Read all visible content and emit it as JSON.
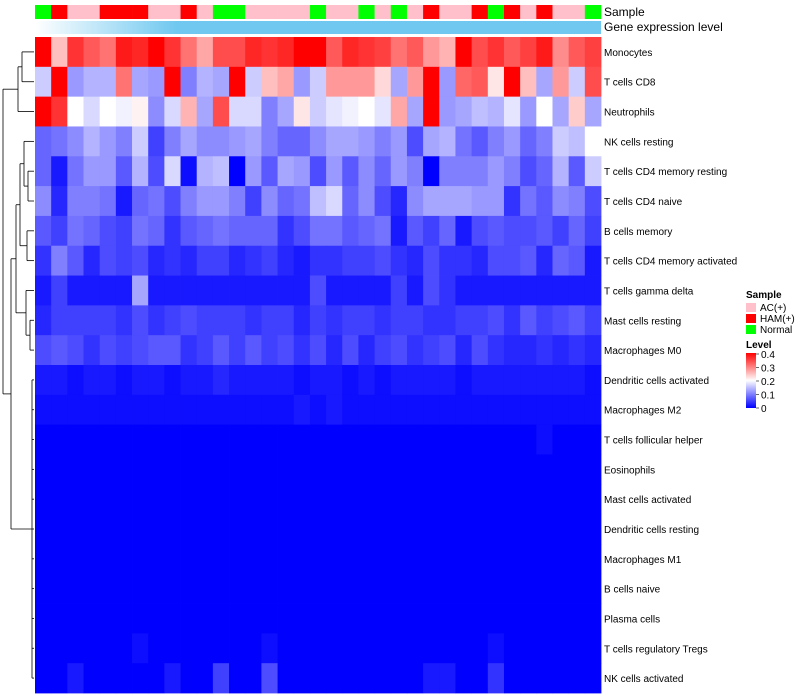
{
  "chart_data": {
    "type": "heatmap",
    "title": "",
    "annotations": {
      "sample_track_label": "Sample",
      "expression_track_label": "Gene expression level",
      "samples": [
        "Normal",
        "HAM(+)",
        "AC(+)",
        "AC(+)",
        "HAM(+)",
        "HAM(+)",
        "HAM(+)",
        "AC(+)",
        "AC(+)",
        "HAM(+)",
        "AC(+)",
        "Normal",
        "Normal",
        "AC(+)",
        "AC(+)",
        "AC(+)",
        "AC(+)",
        "Normal",
        "AC(+)",
        "AC(+)",
        "Normal",
        "AC(+)",
        "Normal",
        "AC(+)",
        "HAM(+)",
        "AC(+)",
        "AC(+)",
        "HAM(+)",
        "Normal",
        "HAM(+)",
        "AC(+)",
        "HAM(+)",
        "AC(+)",
        "AC(+)",
        "Normal"
      ]
    },
    "rows": [
      "Monocytes",
      "T cells CD8",
      "Neutrophils",
      "NK cells resting",
      "T cells CD4 memory resting",
      "T cells CD4 naive",
      "B cells memory",
      "T cells CD4 memory activated",
      "T cells gamma delta",
      "Mast cells resting",
      "Macrophages M0",
      "Dendritic cells activated",
      "Macrophages M2",
      "T cells follicular helper",
      "Eosinophils",
      "Mast cells activated",
      "Dendritic cells resting",
      "Macrophages M1",
      "B cells naive",
      "Plasma cells",
      "T cells regulatory  Tregs",
      "NK cells activated"
    ],
    "values": [
      [
        0.4,
        0.25,
        0.36,
        0.33,
        0.31,
        0.38,
        0.37,
        0.42,
        0.36,
        0.31,
        0.27,
        0.34,
        0.34,
        0.37,
        0.36,
        0.37,
        0.4,
        0.44,
        0.33,
        0.37,
        0.36,
        0.35,
        0.31,
        0.33,
        0.28,
        0.26,
        0.45,
        0.34,
        0.36,
        0.33,
        0.35,
        0.38,
        0.29,
        0.33,
        0.35
      ],
      [
        0.16,
        0.44,
        0.12,
        0.14,
        0.14,
        0.31,
        0.13,
        0.12,
        0.41,
        0.1,
        0.14,
        0.13,
        0.43,
        0.16,
        0.25,
        0.27,
        0.12,
        0.16,
        0.28,
        0.28,
        0.28,
        0.23,
        0.13,
        0.28,
        0.43,
        0.12,
        0.32,
        0.33,
        0.22,
        0.44,
        0.25,
        0.13,
        0.28,
        0.16,
        0.34
      ],
      [
        0.42,
        0.36,
        0.2,
        0.17,
        0.2,
        0.19,
        0.21,
        0.11,
        0.17,
        0.26,
        0.13,
        0.34,
        0.17,
        0.17,
        0.1,
        0.13,
        0.22,
        0.16,
        0.18,
        0.19,
        0.2,
        0.18,
        0.27,
        0.13,
        0.4,
        0.12,
        0.13,
        0.15,
        0.14,
        0.18,
        0.12,
        0.2,
        0.13,
        0.24,
        0.13
      ],
      [
        0.08,
        0.09,
        0.11,
        0.14,
        0.12,
        0.1,
        0.16,
        0.05,
        0.1,
        0.13,
        0.11,
        0.11,
        0.12,
        0.13,
        0.1,
        0.08,
        0.08,
        0.11,
        0.13,
        0.13,
        0.12,
        0.1,
        0.12,
        0.06,
        0.13,
        0.14,
        0.09,
        0.07,
        0.1,
        0.12,
        0.08,
        0.1,
        0.16,
        0.15,
        0.2
      ],
      [
        0.08,
        0.02,
        0.09,
        0.12,
        0.12,
        0.07,
        0.14,
        0.06,
        0.17,
        0.01,
        0.14,
        0.15,
        0.0,
        0.12,
        0.07,
        0.13,
        0.12,
        0.06,
        0.12,
        0.07,
        0.11,
        0.08,
        0.12,
        0.1,
        0.0,
        0.1,
        0.1,
        0.1,
        0.12,
        0.1,
        0.06,
        0.08,
        0.14,
        0.07,
        0.16
      ],
      [
        0.11,
        0.03,
        0.1,
        0.1,
        0.09,
        0.02,
        0.08,
        0.09,
        0.06,
        0.1,
        0.12,
        0.12,
        0.1,
        0.05,
        0.11,
        0.08,
        0.09,
        0.15,
        0.17,
        0.08,
        0.11,
        0.06,
        0.03,
        0.11,
        0.13,
        0.13,
        0.13,
        0.12,
        0.12,
        0.04,
        0.09,
        0.07,
        0.11,
        0.1,
        0.06
      ],
      [
        0.07,
        0.05,
        0.09,
        0.08,
        0.06,
        0.05,
        0.09,
        0.08,
        0.04,
        0.07,
        0.08,
        0.09,
        0.08,
        0.08,
        0.08,
        0.04,
        0.06,
        0.09,
        0.09,
        0.07,
        0.08,
        0.09,
        0.02,
        0.07,
        0.05,
        0.08,
        0.02,
        0.06,
        0.07,
        0.06,
        0.06,
        0.07,
        0.05,
        0.08,
        0.05
      ],
      [
        0.04,
        0.1,
        0.07,
        0.03,
        0.06,
        0.05,
        0.06,
        0.03,
        0.04,
        0.03,
        0.05,
        0.05,
        0.03,
        0.04,
        0.05,
        0.03,
        0.02,
        0.04,
        0.04,
        0.05,
        0.05,
        0.06,
        0.04,
        0.03,
        0.06,
        0.04,
        0.04,
        0.03,
        0.06,
        0.06,
        0.07,
        0.03,
        0.08,
        0.07,
        0.02
      ],
      [
        0.02,
        0.05,
        0.02,
        0.02,
        0.02,
        0.02,
        0.13,
        0.02,
        0.02,
        0.02,
        0.02,
        0.02,
        0.02,
        0.02,
        0.02,
        0.02,
        0.02,
        0.06,
        0.02,
        0.02,
        0.02,
        0.02,
        0.05,
        0.02,
        0.06,
        0.04,
        0.02,
        0.02,
        0.02,
        0.02,
        0.02,
        0.02,
        0.02,
        0.02,
        0.02
      ],
      [
        0.03,
        0.05,
        0.05,
        0.05,
        0.05,
        0.04,
        0.06,
        0.04,
        0.05,
        0.06,
        0.05,
        0.05,
        0.05,
        0.04,
        0.05,
        0.05,
        0.03,
        0.05,
        0.04,
        0.05,
        0.05,
        0.04,
        0.05,
        0.05,
        0.04,
        0.04,
        0.05,
        0.05,
        0.06,
        0.04,
        0.07,
        0.05,
        0.06,
        0.07,
        0.05
      ],
      [
        0.06,
        0.07,
        0.06,
        0.04,
        0.06,
        0.05,
        0.06,
        0.07,
        0.07,
        0.04,
        0.05,
        0.07,
        0.05,
        0.07,
        0.05,
        0.06,
        0.04,
        0.06,
        0.03,
        0.06,
        0.03,
        0.05,
        0.06,
        0.04,
        0.05,
        0.06,
        0.03,
        0.06,
        0.04,
        0.03,
        0.03,
        0.04,
        0.03,
        0.04,
        0.03
      ],
      [
        0.02,
        0.02,
        0.01,
        0.02,
        0.02,
        0.01,
        0.02,
        0.02,
        0.01,
        0.02,
        0.02,
        0.03,
        0.02,
        0.02,
        0.02,
        0.02,
        0.01,
        0.02,
        0.02,
        0.01,
        0.02,
        0.01,
        0.02,
        0.02,
        0.02,
        0.02,
        0.01,
        0.02,
        0.02,
        0.02,
        0.02,
        0.02,
        0.02,
        0.02,
        0.01
      ],
      [
        0.01,
        0.01,
        0.01,
        0.01,
        0.01,
        0.01,
        0.01,
        0.01,
        0.01,
        0.01,
        0.01,
        0.01,
        0.01,
        0.01,
        0.01,
        0.01,
        0.02,
        0.01,
        0.02,
        0.01,
        0.01,
        0.01,
        0.01,
        0.01,
        0.01,
        0.01,
        0.01,
        0.01,
        0.01,
        0.01,
        0.01,
        0.01,
        0.01,
        0.01,
        0.01
      ],
      [
        0.0,
        0.0,
        0.0,
        0.0,
        0.0,
        0.0,
        0.0,
        0.0,
        0.0,
        0.0,
        0.0,
        0.0,
        0.0,
        0.0,
        0.0,
        0.0,
        0.0,
        0.0,
        0.0,
        0.0,
        0.0,
        0.0,
        0.0,
        0.0,
        0.0,
        0.0,
        0.0,
        0.0,
        0.0,
        0.0,
        0.0,
        0.01,
        0.0,
        0.0,
        0.0
      ],
      [
        0.0,
        0.0,
        0.0,
        0.0,
        0.0,
        0.0,
        0.0,
        0.0,
        0.0,
        0.0,
        0.0,
        0.0,
        0.0,
        0.0,
        0.0,
        0.0,
        0.0,
        0.0,
        0.0,
        0.0,
        0.0,
        0.0,
        0.0,
        0.0,
        0.0,
        0.0,
        0.0,
        0.0,
        0.0,
        0.0,
        0.0,
        0.0,
        0.0,
        0.0,
        0.0
      ],
      [
        0.0,
        0.0,
        0.0,
        0.0,
        0.0,
        0.0,
        0.0,
        0.0,
        0.0,
        0.0,
        0.0,
        0.0,
        0.0,
        0.0,
        0.0,
        0.0,
        0.0,
        0.0,
        0.0,
        0.0,
        0.0,
        0.0,
        0.0,
        0.0,
        0.0,
        0.0,
        0.0,
        0.0,
        0.0,
        0.0,
        0.0,
        0.0,
        0.0,
        0.0,
        0.0
      ],
      [
        0.0,
        0.0,
        0.0,
        0.0,
        0.0,
        0.0,
        0.0,
        0.0,
        0.0,
        0.0,
        0.0,
        0.0,
        0.0,
        0.0,
        0.0,
        0.0,
        0.0,
        0.0,
        0.0,
        0.0,
        0.0,
        0.0,
        0.0,
        0.0,
        0.0,
        0.0,
        0.0,
        0.0,
        0.0,
        0.0,
        0.0,
        0.0,
        0.0,
        0.0,
        0.0
      ],
      [
        0.0,
        0.0,
        0.0,
        0.0,
        0.0,
        0.0,
        0.0,
        0.0,
        0.0,
        0.0,
        0.0,
        0.0,
        0.0,
        0.0,
        0.0,
        0.0,
        0.0,
        0.0,
        0.0,
        0.0,
        0.0,
        0.0,
        0.0,
        0.0,
        0.0,
        0.0,
        0.0,
        0.0,
        0.0,
        0.0,
        0.0,
        0.0,
        0.0,
        0.0,
        0.0
      ],
      [
        0.0,
        0.0,
        0.0,
        0.0,
        0.0,
        0.0,
        0.0,
        0.0,
        0.0,
        0.0,
        0.0,
        0.0,
        0.0,
        0.0,
        0.0,
        0.0,
        0.0,
        0.0,
        0.0,
        0.0,
        0.0,
        0.0,
        0.0,
        0.0,
        0.0,
        0.0,
        0.0,
        0.0,
        0.0,
        0.0,
        0.0,
        0.0,
        0.0,
        0.0,
        0.0
      ],
      [
        0.0,
        0.0,
        0.0,
        0.0,
        0.0,
        0.0,
        0.0,
        0.0,
        0.0,
        0.0,
        0.0,
        0.0,
        0.0,
        0.0,
        0.0,
        0.0,
        0.0,
        0.0,
        0.0,
        0.0,
        0.0,
        0.0,
        0.0,
        0.0,
        0.0,
        0.0,
        0.0,
        0.0,
        0.0,
        0.0,
        0.0,
        0.0,
        0.0,
        0.0,
        0.0
      ],
      [
        0.0,
        0.0,
        0.0,
        0.0,
        0.0,
        0.0,
        0.01,
        0.0,
        0.0,
        0.0,
        0.0,
        0.0,
        0.0,
        0.0,
        0.01,
        0.0,
        0.0,
        0.0,
        0.0,
        0.0,
        0.0,
        0.0,
        0.0,
        0.0,
        0.0,
        0.0,
        0.0,
        0.0,
        0.01,
        0.0,
        0.0,
        0.0,
        0.0,
        0.0,
        0.0
      ],
      [
        0.0,
        0.0,
        0.02,
        0.0,
        0.0,
        0.0,
        0.0,
        0.0,
        0.02,
        0.0,
        0.0,
        0.05,
        0.0,
        0.0,
        0.06,
        0.0,
        0.0,
        0.0,
        0.0,
        0.0,
        0.0,
        0.0,
        0.0,
        0.0,
        0.02,
        0.02,
        0.0,
        0.0,
        0.04,
        0.0,
        0.0,
        0.0,
        0.0,
        0.0,
        0.0
      ]
    ],
    "color_scale": {
      "min": 0,
      "mid": 0.2,
      "max": 0.4,
      "low": "#0000ff",
      "midColor": "#ffffff",
      "high": "#ff0000"
    },
    "legend": {
      "sample_title": "Sample",
      "groups": [
        {
          "name": "AC(+)",
          "color": "#ffc0cb"
        },
        {
          "name": "HAM(+)",
          "color": "#ff0000"
        },
        {
          "name": "Normal",
          "color": "#00ff00"
        }
      ],
      "level_title": "Level",
      "ticks": [
        "0.4",
        "0.3",
        "0.2",
        "0.1",
        "0"
      ],
      "placement": "right"
    },
    "expression_track_color": "#70c8f0",
    "dendrogram": "row clustering tree on left"
  }
}
